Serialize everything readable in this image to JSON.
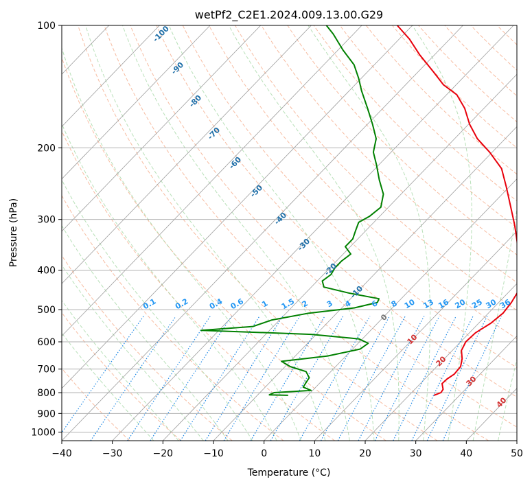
{
  "chart_data": {
    "type": "skew-t",
    "title": "wetPf2_C2E1.2024.009.13.00.G29",
    "xlabel": "Temperature (°C)",
    "ylabel": "Pressure (hPa)",
    "xlim": [
      -40,
      50
    ],
    "ylim": [
      1050,
      100
    ],
    "y_scale": "log",
    "grid": true,
    "x_ticks": [
      "−40",
      "−30",
      "−20",
      "−10",
      "0",
      "10",
      "20",
      "30",
      "40",
      "50"
    ],
    "x_tick_values": [
      -40,
      -30,
      -20,
      -10,
      0,
      10,
      20,
      30,
      40,
      50
    ],
    "y_ticks": [
      "100",
      "200",
      "300",
      "400",
      "500",
      "600",
      "700",
      "800",
      "900",
      "1000"
    ],
    "y_tick_values": [
      100,
      200,
      300,
      400,
      500,
      600,
      700,
      800,
      900,
      1000
    ],
    "colors": {
      "temperature": "#e8000b",
      "dewpoint": "#008000",
      "isotherm": "#9e9e9e",
      "dry_adiabat": "#f4a582",
      "moist_adiabat": "#a6d8a6",
      "mixing_ratio": "#1e88e5",
      "mixing_label": "#2196f3",
      "isotherm_label": "#1f6fa8",
      "red_label": "#d32f2f",
      "zero_label": "#757575"
    },
    "series": [
      {
        "name": "temperature",
        "points": [
          {
            "p": 812,
            "t": 24.9
          },
          {
            "p": 800,
            "t": 25.8
          },
          {
            "p": 785,
            "t": 25.6
          },
          {
            "p": 760,
            "t": 24.3
          },
          {
            "p": 740,
            "t": 24.4
          },
          {
            "p": 720,
            "t": 24.9
          },
          {
            "p": 690,
            "t": 24.7
          },
          {
            "p": 660,
            "t": 23.5
          },
          {
            "p": 630,
            "t": 21.8
          },
          {
            "p": 600,
            "t": 21.0
          },
          {
            "p": 570,
            "t": 21.2
          },
          {
            "p": 540,
            "t": 22.4
          },
          {
            "p": 510,
            "t": 22.9
          },
          {
            "p": 480,
            "t": 22.5
          },
          {
            "p": 450,
            "t": 21.7
          },
          {
            "p": 430,
            "t": 20.3
          },
          {
            "p": 400,
            "t": 17.8
          },
          {
            "p": 370,
            "t": 15.1
          },
          {
            "p": 340,
            "t": 12.0
          },
          {
            "p": 310,
            "t": 8.4
          },
          {
            "p": 280,
            "t": 4.2
          },
          {
            "p": 250,
            "t": -0.5
          },
          {
            "p": 225,
            "t": -5.0
          },
          {
            "p": 205,
            "t": -10.5
          },
          {
            "p": 190,
            "t": -15.5
          },
          {
            "p": 175,
            "t": -19.8
          },
          {
            "p": 160,
            "t": -23.8
          },
          {
            "p": 148,
            "t": -28.0
          },
          {
            "p": 140,
            "t": -32.5
          },
          {
            "p": 130,
            "t": -37.0
          },
          {
            "p": 118,
            "t": -43.0
          },
          {
            "p": 108,
            "t": -48.0
          },
          {
            "p": 100,
            "t": -53.0
          }
        ]
      },
      {
        "name": "dewpoint",
        "points": [
          {
            "p": 812,
            "t": -3.9
          },
          {
            "p": 810,
            "t": -7.7
          },
          {
            "p": 800,
            "t": -7.2
          },
          {
            "p": 790,
            "t": -0.3
          },
          {
            "p": 775,
            "t": -2.5
          },
          {
            "p": 755,
            "t": -2.8
          },
          {
            "p": 735,
            "t": -3.1
          },
          {
            "p": 710,
            "t": -4.9
          },
          {
            "p": 690,
            "t": -9.0
          },
          {
            "p": 670,
            "t": -11.7
          },
          {
            "p": 650,
            "t": -3.6
          },
          {
            "p": 625,
            "t": 1.5
          },
          {
            "p": 605,
            "t": 2.0
          },
          {
            "p": 590,
            "t": -0.7
          },
          {
            "p": 575,
            "t": -11.0
          },
          {
            "p": 562,
            "t": -33.5
          },
          {
            "p": 550,
            "t": -24.0
          },
          {
            "p": 530,
            "t": -21.5
          },
          {
            "p": 510,
            "t": -15.5
          },
          {
            "p": 495,
            "t": -7.5
          },
          {
            "p": 480,
            "t": -4.0
          },
          {
            "p": 470,
            "t": -4.4
          },
          {
            "p": 455,
            "t": -11.5
          },
          {
            "p": 440,
            "t": -17.5
          },
          {
            "p": 425,
            "t": -19.0
          },
          {
            "p": 410,
            "t": -18.5
          },
          {
            "p": 395,
            "t": -19.0
          },
          {
            "p": 380,
            "t": -19.0
          },
          {
            "p": 365,
            "t": -18.5
          },
          {
            "p": 350,
            "t": -21.0
          },
          {
            "p": 335,
            "t": -21.0
          },
          {
            "p": 320,
            "t": -22.0
          },
          {
            "p": 305,
            "t": -23.0
          },
          {
            "p": 295,
            "t": -22.0
          },
          {
            "p": 280,
            "t": -21.5
          },
          {
            "p": 260,
            "t": -23.5
          },
          {
            "p": 240,
            "t": -27.0
          },
          {
            "p": 220,
            "t": -30.5
          },
          {
            "p": 205,
            "t": -33.5
          },
          {
            "p": 190,
            "t": -35.5
          },
          {
            "p": 175,
            "t": -39.0
          },
          {
            "p": 160,
            "t": -43.0
          },
          {
            "p": 145,
            "t": -47.5
          },
          {
            "p": 135,
            "t": -50.5
          },
          {
            "p": 125,
            "t": -54.0
          },
          {
            "p": 115,
            "t": -59.0
          },
          {
            "p": 105,
            "t": -64.0
          },
          {
            "p": 100,
            "t": -67.0
          }
        ]
      }
    ],
    "isotherm_labels": [
      "-100",
      "-90",
      "-80",
      "-70",
      "-60",
      "-50",
      "-40",
      "-30",
      "-20",
      "-10",
      "0",
      "10",
      "20",
      "30",
      "40"
    ],
    "isotherm_label_values": [
      -100,
      -90,
      -80,
      -70,
      -60,
      -50,
      -40,
      -30,
      -20,
      -10,
      0,
      10,
      20,
      30,
      40
    ],
    "mixing_ratio_labels": [
      "0.1",
      "0.2",
      "0.4",
      "0.6",
      "1",
      "1.5",
      "2",
      "3",
      "4",
      "6",
      "8",
      "10",
      "13",
      "16",
      "20",
      "25",
      "30",
      "36"
    ],
    "mixing_ratio_values": [
      0.1,
      0.2,
      0.4,
      0.6,
      1,
      1.5,
      2,
      3,
      4,
      6,
      8,
      10,
      13,
      16,
      20,
      25,
      30,
      36
    ]
  }
}
